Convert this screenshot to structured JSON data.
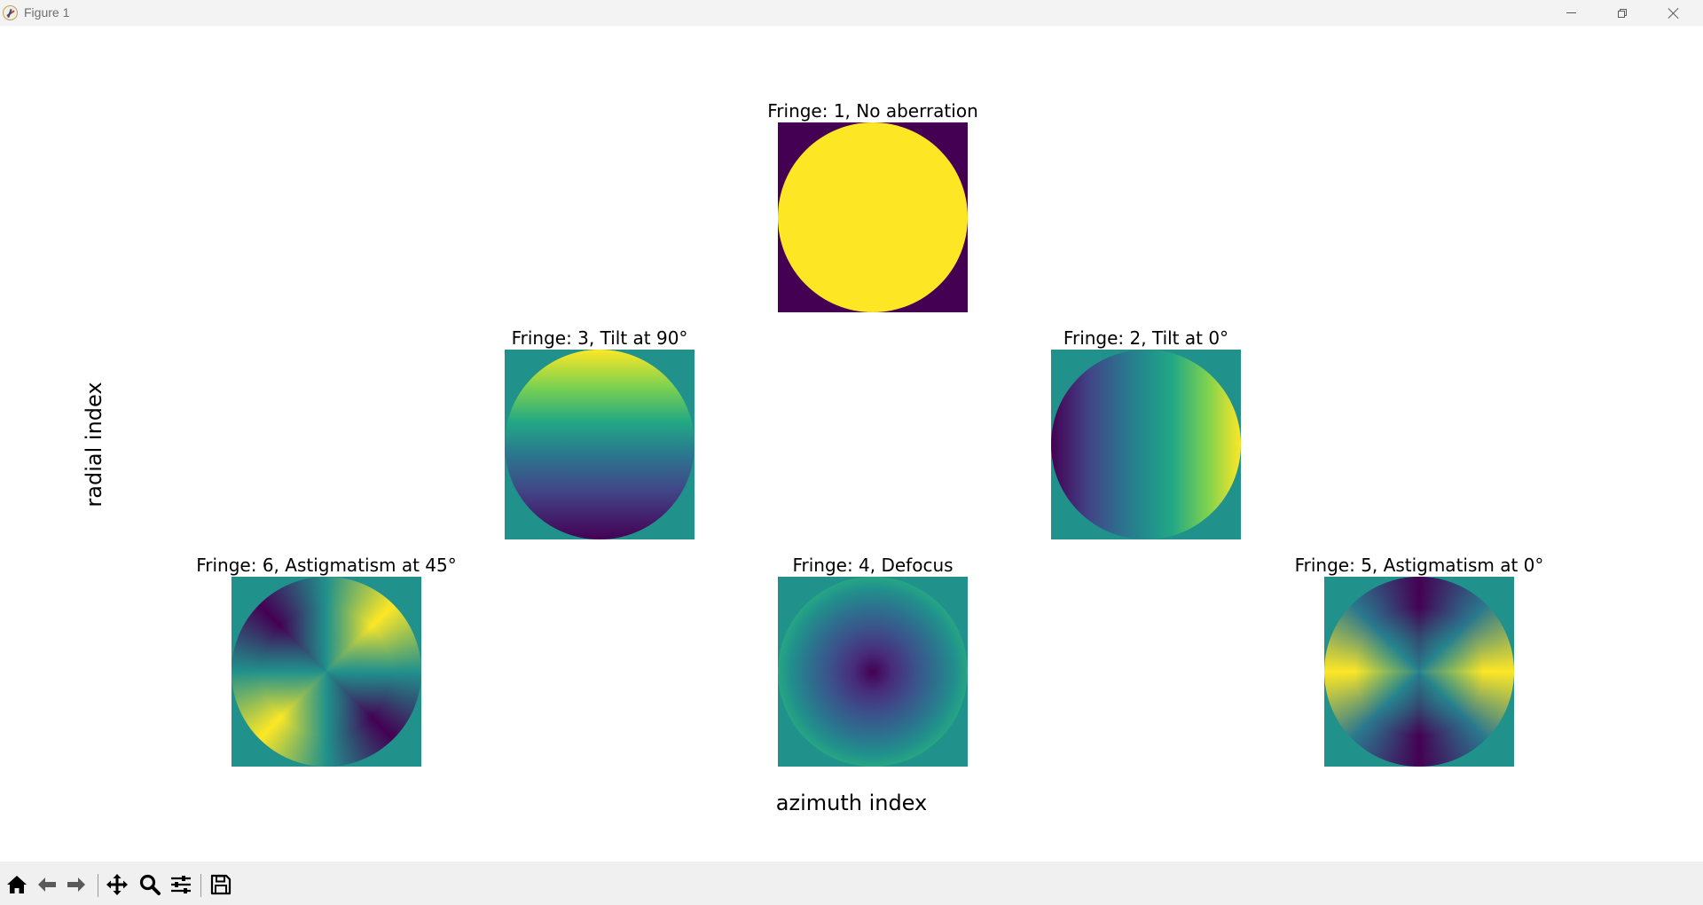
{
  "window": {
    "title": "Figure 1",
    "controls": [
      "minimize",
      "maximize",
      "close"
    ]
  },
  "figure": {
    "ylabel": "radial index",
    "xlabel": "azimuth index",
    "colormap": "viridis",
    "subplots": [
      {
        "title": "Fringe: 1, No aberration",
        "pattern": "piston",
        "radial_index": 0,
        "azimuth_index": 0
      },
      {
        "title": "Fringe: 3, Tilt at 90°",
        "pattern": "tilt-90",
        "radial_index": 1,
        "azimuth_index": -1
      },
      {
        "title": "Fringe: 2, Tilt at 0°",
        "pattern": "tilt-0",
        "radial_index": 1,
        "azimuth_index": 1
      },
      {
        "title": "Fringe: 6, Astigmatism at 45°",
        "pattern": "astigmatism-45",
        "radial_index": 2,
        "azimuth_index": -2
      },
      {
        "title": "Fringe: 4, Defocus",
        "pattern": "defocus",
        "radial_index": 2,
        "azimuth_index": 0
      },
      {
        "title": "Fringe: 5, Astigmatism at 0°",
        "pattern": "astigmatism-0",
        "radial_index": 2,
        "azimuth_index": 2
      }
    ]
  },
  "toolbar": {
    "items": [
      {
        "icon": "home-icon",
        "tooltip": "Reset original view"
      },
      {
        "icon": "back-arrow-icon",
        "tooltip": "Back to previous view"
      },
      {
        "icon": "forward-arrow-icon",
        "tooltip": "Forward to next view"
      },
      {
        "icon": "pan-icon",
        "tooltip": "Pan axes"
      },
      {
        "icon": "zoom-icon",
        "tooltip": "Zoom to rectangle"
      },
      {
        "icon": "configure-subplots-icon",
        "tooltip": "Configure subplots"
      },
      {
        "icon": "save-icon",
        "tooltip": "Save the figure"
      }
    ]
  },
  "colors": {
    "viridis_dark": "#440154",
    "viridis_mid": "#21918c",
    "viridis_bright": "#fde725"
  }
}
